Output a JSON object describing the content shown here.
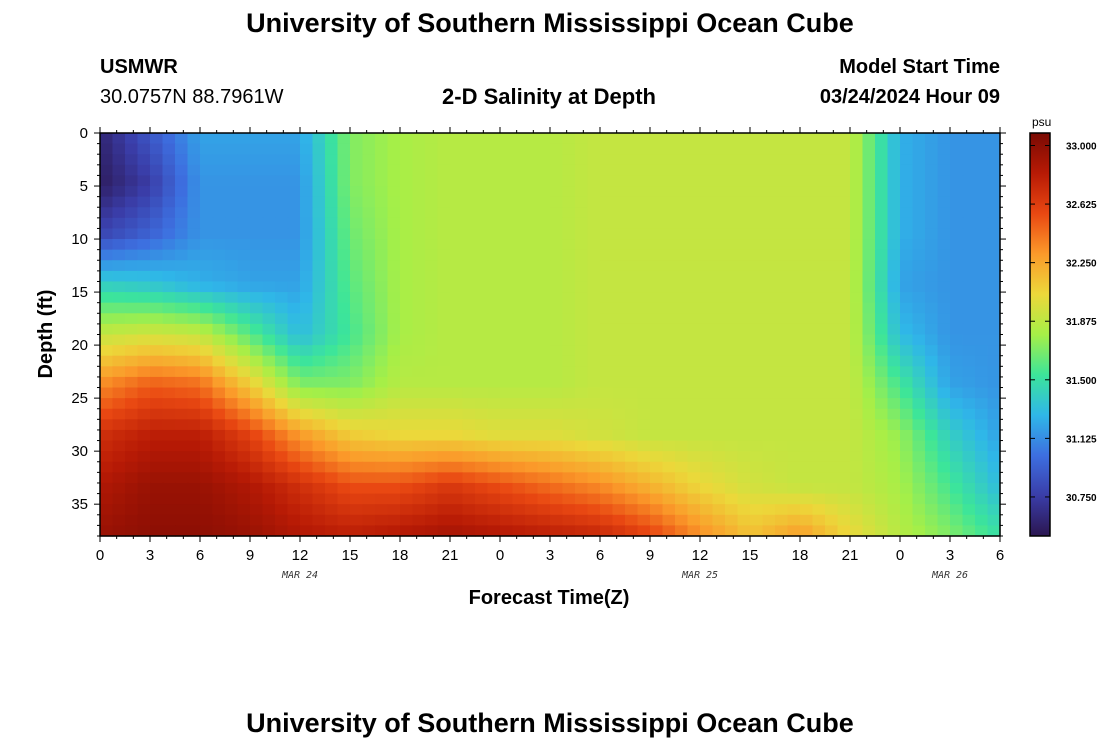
{
  "header": {
    "title": "University of Southern Mississippi Ocean Cube",
    "station": "USMWR",
    "coords": "30.0757N  88.7961W",
    "plot_title": "2-D Salinity at Depth",
    "model_label": "Model Start Time",
    "model_time": "03/24/2024 Hour 09"
  },
  "footer": {
    "title": "University of Southern Mississippi Ocean Cube"
  },
  "chart_data": {
    "type": "heatmap",
    "title": "2-D Salinity at Depth",
    "xlabel": "Forecast Time(Z)",
    "ylabel": "Depth (ft)",
    "x_ticks": [
      "0",
      "3",
      "6",
      "9",
      "12",
      "15",
      "18",
      "21",
      "0",
      "3",
      "6",
      "9",
      "12",
      "15",
      "18",
      "21",
      "0",
      "3",
      "6"
    ],
    "x_range_hours": [
      0,
      54
    ],
    "date_labels": [
      {
        "label": "MAR 24",
        "hour": 12
      },
      {
        "label": "MAR 25",
        "hour": 36
      },
      {
        "label": "MAR 26",
        "hour": 51
      }
    ],
    "y_ticks": [
      0,
      5,
      10,
      15,
      20,
      25,
      30,
      35
    ],
    "y_range": [
      0,
      38
    ],
    "y_reversed": true,
    "colorbar": {
      "unit": "psu",
      "range": [
        30.5,
        33.08
      ],
      "ticks": [
        "33.000",
        "32.625",
        "32.250",
        "31.875",
        "31.500",
        "31.125",
        "30.750"
      ],
      "colors": [
        "#2b1650",
        "#3a3da8",
        "#3d6fe0",
        "#2fb7e8",
        "#3ce59a",
        "#a6ef47",
        "#ecd83a",
        "#fb9a2a",
        "#e94812",
        "#b71a05",
        "#7a0a03"
      ]
    },
    "values_psu": [
      [
        30.6,
        30.9,
        31.2,
        31.2,
        31.2,
        31.7,
        31.8,
        31.85,
        31.85,
        31.85,
        31.9,
        31.9,
        31.9,
        31.9,
        31.9,
        31.9,
        31.25,
        31.15,
        31.15
      ],
      [
        30.55,
        30.75,
        31.15,
        31.15,
        31.15,
        31.7,
        31.8,
        31.85,
        31.85,
        31.85,
        31.9,
        31.9,
        31.9,
        31.9,
        31.9,
        31.9,
        31.25,
        31.15,
        31.15
      ],
      [
        30.8,
        30.95,
        31.15,
        31.15,
        31.15,
        31.65,
        31.8,
        31.85,
        31.85,
        31.85,
        31.9,
        31.9,
        31.9,
        31.9,
        31.9,
        31.9,
        31.25,
        31.15,
        31.15
      ],
      [
        31.4,
        31.35,
        31.25,
        31.2,
        31.2,
        31.6,
        31.8,
        31.85,
        31.85,
        31.85,
        31.9,
        31.9,
        31.9,
        31.9,
        31.9,
        31.9,
        31.2,
        31.15,
        31.15
      ],
      [
        31.9,
        31.95,
        31.9,
        31.6,
        31.3,
        31.55,
        31.8,
        31.85,
        31.85,
        31.85,
        31.9,
        31.9,
        31.9,
        31.9,
        31.9,
        31.9,
        31.3,
        31.15,
        31.15
      ],
      [
        32.35,
        32.5,
        32.45,
        32.1,
        31.7,
        31.7,
        31.85,
        31.85,
        31.85,
        31.85,
        31.9,
        31.9,
        31.9,
        31.9,
        31.9,
        31.9,
        31.55,
        31.2,
        31.15
      ],
      [
        32.7,
        32.8,
        32.8,
        32.6,
        32.3,
        32.1,
        32.05,
        32.05,
        32.0,
        32.0,
        31.95,
        31.9,
        31.9,
        31.9,
        31.9,
        31.9,
        31.75,
        31.4,
        31.2
      ],
      [
        32.85,
        32.95,
        32.95,
        32.85,
        32.7,
        32.55,
        32.55,
        32.65,
        32.55,
        32.45,
        32.35,
        32.2,
        32.05,
        31.95,
        31.9,
        31.9,
        31.8,
        31.55,
        31.3
      ],
      [
        32.95,
        33.0,
        33.0,
        32.95,
        32.85,
        32.8,
        32.85,
        32.9,
        32.85,
        32.8,
        32.75,
        32.6,
        32.35,
        32.15,
        32.3,
        32.05,
        31.85,
        31.7,
        31.5
      ]
    ]
  }
}
